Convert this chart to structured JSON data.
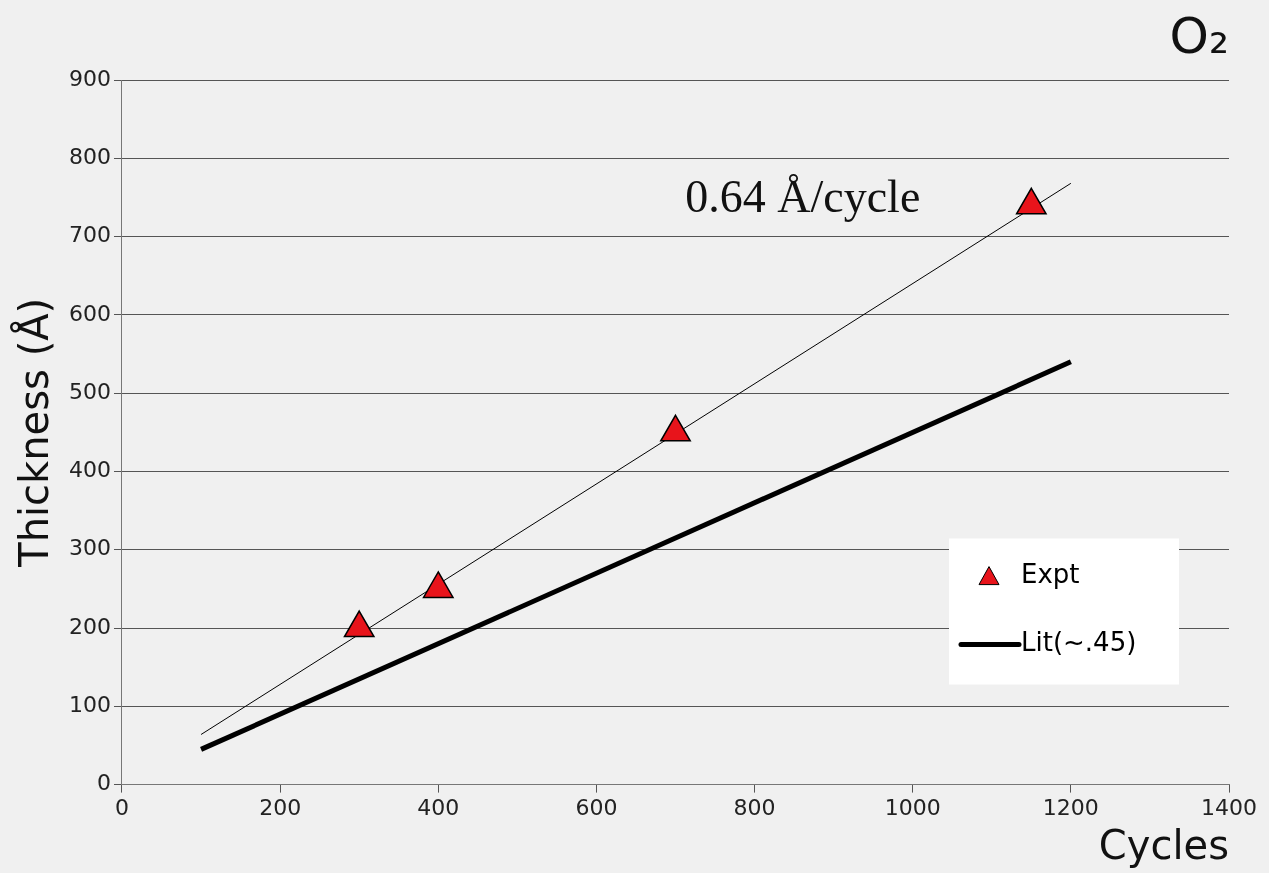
{
  "chart_data": {
    "type": "scatter",
    "title": "O₂",
    "xlabel": "Cycles",
    "ylabel": "Thickness (Å)",
    "xlim": [
      0,
      1400
    ],
    "xticks": [
      0,
      200,
      400,
      600,
      800,
      1000,
      1200,
      1400
    ],
    "ylim": [
      0,
      900
    ],
    "yticks": [
      0,
      100,
      200,
      300,
      400,
      500,
      600,
      700,
      800,
      900
    ],
    "grid": "y",
    "legend": "bottom right",
    "series": [
      {
        "name": "Expt",
        "color": "#e8141b",
        "marker": "triangle",
        "x": [
          300,
          400,
          700,
          1150
        ],
        "values": [
          200,
          250,
          450,
          740
        ]
      },
      {
        "name": "Lit(~.45)",
        "type": "line",
        "color": "#000000",
        "marker": "none",
        "x": [
          100,
          1200
        ],
        "values": [
          45,
          540
        ]
      },
      {
        "type": "line",
        "color": "#000000",
        "marker": "none",
        "x": [
          100,
          1200
        ],
        "values": [
          64,
          768
        ]
      }
    ],
    "annotations": [
      "0.64 Å/cycle"
    ]
  }
}
